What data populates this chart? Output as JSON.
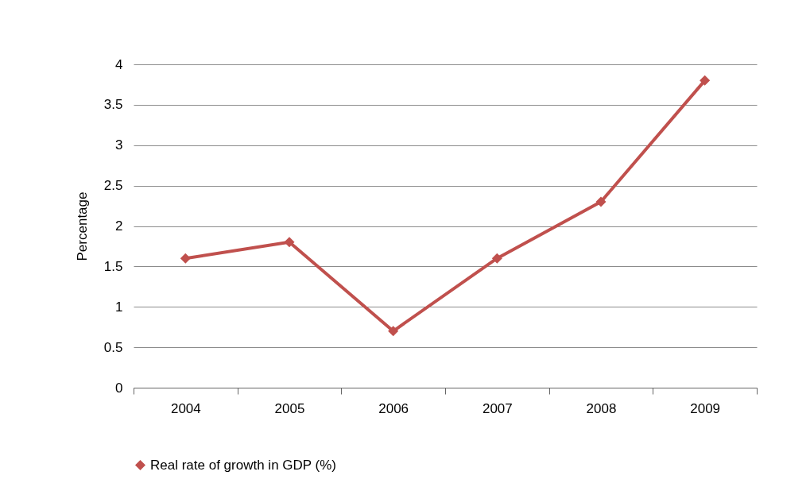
{
  "chart_data": {
    "type": "line",
    "ylabel": "Percentage",
    "categories": [
      "2004",
      "2005",
      "2006",
      "2007",
      "2008",
      "2009"
    ],
    "series": [
      {
        "name": "Real rate of growth in GDP (%)",
        "color": "#c0504d",
        "values": [
          1.6,
          1.8,
          0.7,
          1.6,
          2.3,
          3.8
        ]
      }
    ],
    "ylim": [
      0,
      4
    ],
    "yticks": [
      0,
      0.5,
      1,
      1.5,
      2,
      2.5,
      3,
      3.5,
      4
    ],
    "grid": "y",
    "legend": "bottom",
    "marker": "diamond",
    "line_style": "solid"
  }
}
